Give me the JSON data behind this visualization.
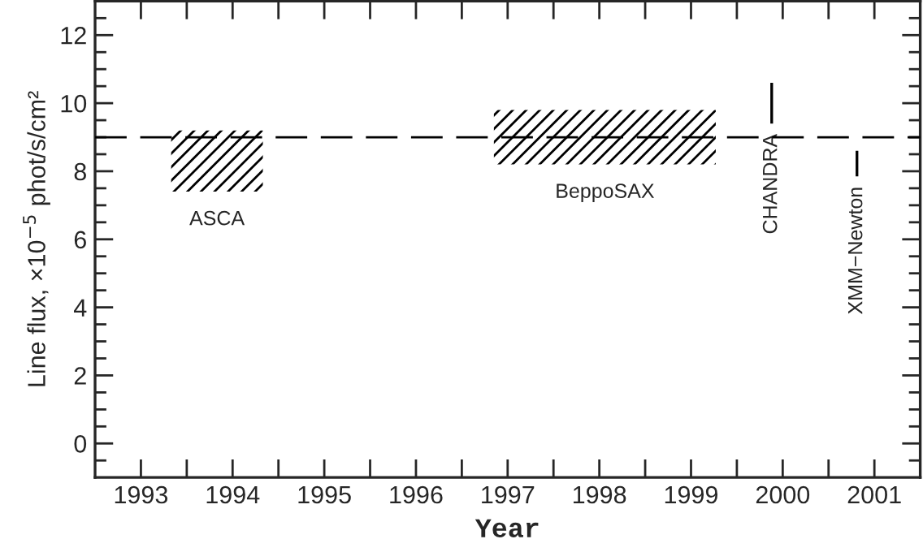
{
  "chart_data": {
    "type": "line",
    "xlabel": "Year",
    "ylabel": "Line flux, ×10$^{−5}$ phot/s/cm²",
    "xlim": [
      1992.5,
      2001.5
    ],
    "ylim": [
      -1,
      13
    ],
    "xticks": [
      1993,
      {
        "value": 1993.5,
        "label": null
      },
      1994,
      {
        "value": 1994.5,
        "label": null
      },
      1995,
      {
        "value": 1995.5,
        "label": null
      },
      1996,
      {
        "value": 1996.5,
        "label": null
      },
      1997,
      {
        "value": 1997.5,
        "label": null
      },
      1998,
      {
        "value": 1998.5,
        "label": null
      },
      1999,
      {
        "value": 1999.5,
        "label": null
      },
      2000,
      {
        "value": 2000.5,
        "label": null
      },
      2001
    ],
    "yticks": [
      {
        "value": -0.5,
        "label": null
      },
      0,
      {
        "value": 0.5,
        "label": null
      },
      {
        "value": 1,
        "label": null
      },
      {
        "value": 1.5,
        "label": null
      },
      2,
      {
        "value": 2.5,
        "label": null
      },
      {
        "value": 3,
        "label": null
      },
      {
        "value": 3.5,
        "label": null
      },
      4,
      {
        "value": 4.5,
        "label": null
      },
      {
        "value": 5,
        "label": null
      },
      {
        "value": 5.5,
        "label": null
      },
      6,
      {
        "value": 6.5,
        "label": null
      },
      {
        "value": 7,
        "label": null
      },
      {
        "value": 7.5,
        "label": null
      },
      8,
      {
        "value": 8.5,
        "label": null
      },
      {
        "value": 9,
        "label": null
      },
      {
        "value": 9.5,
        "label": null
      },
      10,
      {
        "value": 10.5,
        "label": null
      },
      {
        "value": 11,
        "label": null
      },
      {
        "value": 11.5,
        "label": null
      },
      12,
      {
        "value": 12.5,
        "label": null
      }
    ],
    "series": [
      {
        "name": "ASCA",
        "color": "#000000",
        "x": [
          1993.33,
          1994.33
        ],
        "values": [
          null,
          null
        ],
        "lower": [
          7.4,
          7.4
        ],
        "upper": [
          9.2,
          9.2
        ]
      },
      {
        "name": "BeppoSAX",
        "color": "#000000",
        "x": [
          1996.85,
          1999.27
        ],
        "values": [
          null,
          null
        ],
        "lower": [
          8.2,
          8.2
        ],
        "upper": [
          9.8,
          9.8
        ]
      },
      {
        "name": "CHANDRA",
        "color": "#000000",
        "x": [
          1999.88,
          1999.88
        ],
        "values": [
          9.4,
          10.6
        ]
      },
      {
        "name": "XMM−Newton",
        "color": "#000000",
        "x": [
          2000.81,
          2000.81
        ],
        "values": [
          7.85,
          8.6
        ]
      }
    ],
    "ref_lines": [
      {
        "axis": "y",
        "value": 9,
        "color": "#000000",
        "line_style": "dashed"
      }
    ],
    "grid": false
  }
}
